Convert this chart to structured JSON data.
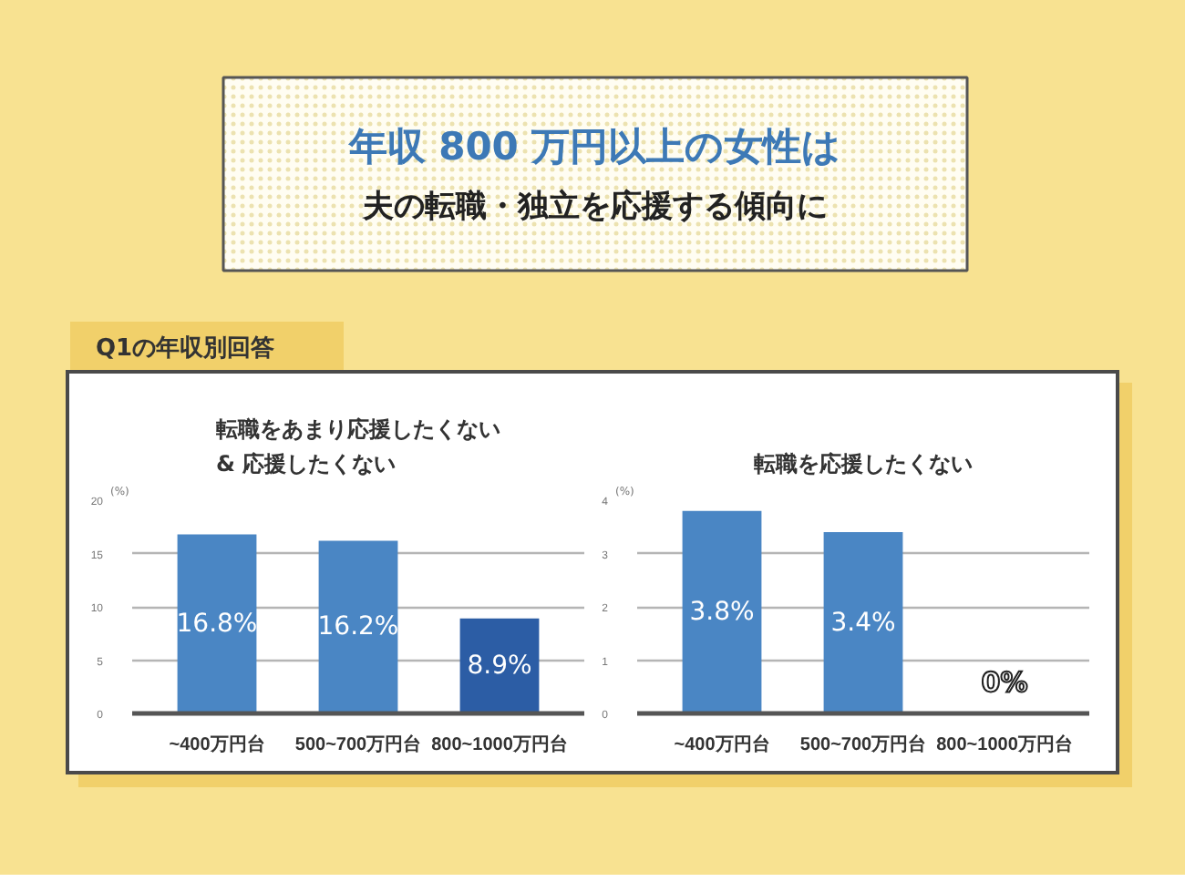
{
  "chart_data": [
    {
      "type": "other",
      "title": "年収 800 万円以上の女性は",
      "subtitle": "夫の転職・独立を応援する傾向に",
      "annotations": [
        "Q1の年収別回答"
      ]
    },
    {
      "type": "bar",
      "title": "転職をあまり応援したくない& 応援したくない",
      "ylabel": "(%)",
      "categories": [
        "~400万円台",
        "500~700万円台",
        "800~1000万円台"
      ],
      "values": [
        16.8,
        16.2,
        8.9
      ],
      "value_labels": [
        "16.8%",
        "16.2%",
        "8.9%"
      ],
      "colors": [
        "#4a86c4",
        "#4a86c4",
        "#2c5da5"
      ],
      "ylim": [
        0,
        20
      ],
      "yticks": [
        0,
        5,
        10,
        15,
        20
      ],
      "grid": "y"
    },
    {
      "type": "bar",
      "title": "転職を応援したくない",
      "ylabel": "(%)",
      "categories": [
        "~400万円台",
        "500~700万円台",
        "800~1000万円台"
      ],
      "values": [
        3.8,
        3.4,
        0
      ],
      "value_labels": [
        "3.8%",
        "3.4%",
        "0%"
      ],
      "color": "#4a86c4",
      "ylim": [
        0,
        4
      ],
      "yticks": [
        0,
        1,
        2,
        3,
        4
      ],
      "grid": "y"
    }
  ]
}
